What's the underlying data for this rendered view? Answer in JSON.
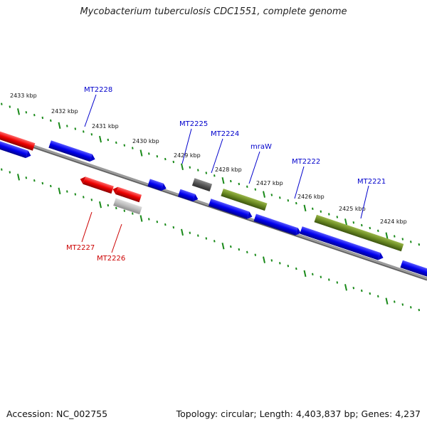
{
  "title": "Mycobacterium tuberculosis CDC1551, complete genome",
  "footer": {
    "accession": "Accession: NC_002755",
    "summary": "Topology: circular; Length: 4,403,837 bp; Genes: 4,237"
  },
  "colors": {
    "backbone": "#777777",
    "ticks": "#1a8a1a",
    "forward_gene": "#0000ee",
    "reverse_gene": "#ee0000",
    "feature_green": "#6a8a22",
    "feature_gray": "#555555",
    "feature_lightgray": "#bbbbbb",
    "label_blue": "#0000cc",
    "label_red": "#cc0000"
  },
  "scale_labels": [
    "2433 kbp",
    "2432 kbp",
    "2431 kbp",
    "2430 kbp",
    "2429 kbp",
    "2428 kbp",
    "2427 kbp",
    "2426 kbp",
    "2425 kbp",
    "2424 kbp"
  ],
  "gene_labels": [
    {
      "text": "MT2228",
      "color": "blue"
    },
    {
      "text": "MT2225",
      "color": "blue"
    },
    {
      "text": "MT2224",
      "color": "blue"
    },
    {
      "text": "mraW",
      "color": "blue"
    },
    {
      "text": "MT2222",
      "color": "blue"
    },
    {
      "text": "MT2221",
      "color": "blue"
    },
    {
      "text": "MT2227",
      "color": "red"
    },
    {
      "text": "MT2226",
      "color": "red"
    }
  ]
}
